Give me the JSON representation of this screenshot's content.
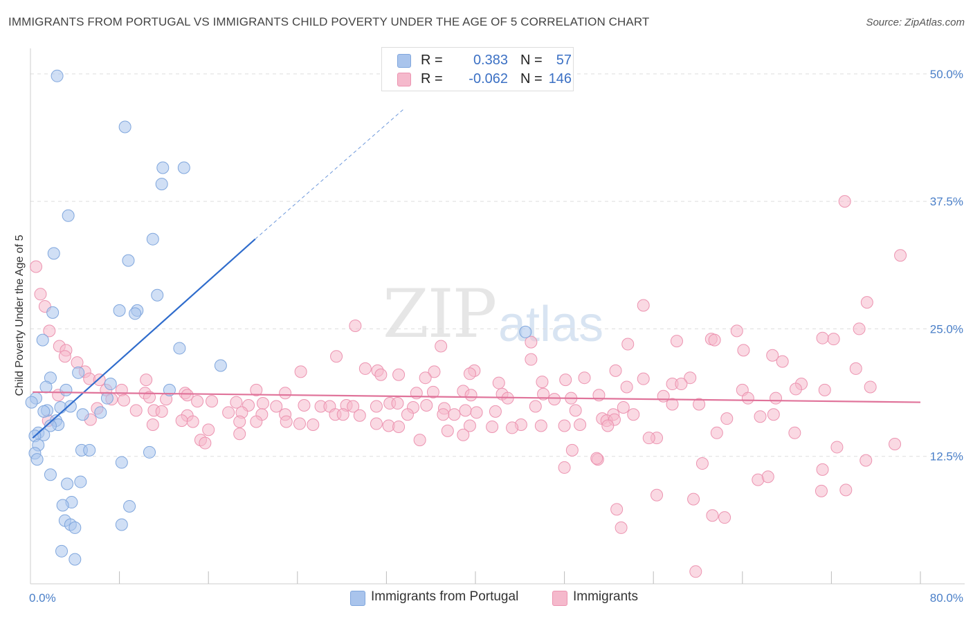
{
  "header": {
    "title": "IMMIGRANTS FROM PORTUGAL VS IMMIGRANTS CHILD POVERTY UNDER THE AGE OF 5 CORRELATION CHART",
    "source": "Source: ZipAtlas.com"
  },
  "watermark": {
    "zip": "ZIP",
    "atlas": "atlas"
  },
  "legend": {
    "rows": [
      {
        "r_label": "R =",
        "r_value": "0.383",
        "n_label": "N =",
        "n_value": "57",
        "color": "#a9c4ec",
        "border": "#7fa6dd"
      },
      {
        "r_label": "R =",
        "r_value": "-0.062",
        "n_label": "N =",
        "n_value": "146",
        "color": "#f5b9cc",
        "border": "#ec93b0"
      }
    ]
  },
  "bottom_legend": [
    {
      "label": "Immigrants from Portugal",
      "color": "#a9c4ec",
      "border": "#7fa6dd"
    },
    {
      "label": "Immigrants",
      "color": "#f5b9cc",
      "border": "#ec93b0"
    }
  ],
  "chart_data": {
    "type": "scatter",
    "title": "IMMIGRANTS FROM PORTUGAL VS IMMIGRANTS CHILD POVERTY UNDER THE AGE OF 5 CORRELATION CHART",
    "xlabel": "",
    "ylabel": "Child Poverty Under the Age of 5",
    "xlim": [
      0,
      80
    ],
    "ylim": [
      0,
      52.5
    ],
    "x_tick_labels": [
      "0.0%",
      "80.0%"
    ],
    "y_ticks": [
      12.5,
      25.0,
      37.5,
      50.0
    ],
    "y_tick_labels": [
      "12.5%",
      "25.0%",
      "37.5%",
      "50.0%"
    ],
    "grid": "horizontal dashed",
    "series": [
      {
        "name": "Immigrants from Portugal",
        "color": "#7fa6dd",
        "fill": "#a9c4ec",
        "trend": {
          "x0": 0.2,
          "y0": 14.3,
          "x1": 20.2,
          "y1": 33.8,
          "dash_to_x": 33.5,
          "dash_to_y": 46.5,
          "color": "#2f6ccc"
        },
        "points": [
          [
            2.4,
            49.8
          ],
          [
            8.5,
            44.8
          ],
          [
            11.9,
            40.8
          ],
          [
            13.8,
            40.8
          ],
          [
            11.8,
            39.2
          ],
          [
            3.4,
            36.1
          ],
          [
            11.0,
            33.8
          ],
          [
            2.1,
            32.4
          ],
          [
            8.8,
            31.7
          ],
          [
            11.4,
            28.3
          ],
          [
            8.0,
            26.8
          ],
          [
            9.6,
            26.8
          ],
          [
            9.4,
            26.5
          ],
          [
            2.0,
            26.6
          ],
          [
            44.5,
            24.7
          ],
          [
            1.1,
            23.9
          ],
          [
            13.4,
            23.1
          ],
          [
            17.1,
            21.4
          ],
          [
            1.8,
            20.2
          ],
          [
            4.3,
            20.7
          ],
          [
            7.2,
            19.6
          ],
          [
            1.4,
            19.3
          ],
          [
            12.5,
            19.0
          ],
          [
            3.2,
            19.0
          ],
          [
            0.5,
            18.2
          ],
          [
            0.1,
            17.8
          ],
          [
            6.9,
            18.2
          ],
          [
            3.6,
            17.4
          ],
          [
            1.5,
            17.0
          ],
          [
            2.7,
            17.3
          ],
          [
            1.2,
            16.9
          ],
          [
            6.3,
            16.8
          ],
          [
            4.7,
            16.6
          ],
          [
            2.3,
            16.0
          ],
          [
            2.5,
            15.6
          ],
          [
            1.8,
            15.5
          ],
          [
            0.7,
            14.8
          ],
          [
            1.2,
            14.6
          ],
          [
            0.4,
            14.5
          ],
          [
            0.7,
            13.6
          ],
          [
            0.4,
            12.8
          ],
          [
            0.6,
            12.2
          ],
          [
            4.6,
            13.1
          ],
          [
            5.3,
            13.1
          ],
          [
            10.7,
            12.9
          ],
          [
            8.2,
            11.9
          ],
          [
            1.8,
            10.7
          ],
          [
            4.5,
            10.0
          ],
          [
            3.3,
            9.8
          ],
          [
            3.7,
            8.0
          ],
          [
            2.9,
            7.7
          ],
          [
            8.9,
            7.6
          ],
          [
            3.1,
            6.2
          ],
          [
            3.6,
            5.8
          ],
          [
            4.0,
            5.5
          ],
          [
            8.2,
            5.8
          ],
          [
            2.8,
            3.2
          ],
          [
            4.0,
            2.4
          ]
        ]
      },
      {
        "name": "Immigrants",
        "color": "#ec93b0",
        "fill": "#f5b9cc",
        "trend": {
          "x0": 0.2,
          "y0": 18.8,
          "x1": 80.0,
          "y1": 17.8,
          "color": "#e0739a"
        },
        "points": [
          [
            73.2,
            37.5
          ],
          [
            78.2,
            32.2
          ],
          [
            0.5,
            31.1
          ],
          [
            0.9,
            28.4
          ],
          [
            1.3,
            27.2
          ],
          [
            55.1,
            27.3
          ],
          [
            75.2,
            27.6
          ],
          [
            1.7,
            24.8
          ],
          [
            29.2,
            25.3
          ],
          [
            53.7,
            23.5
          ],
          [
            72.2,
            24.0
          ],
          [
            74.5,
            25.0
          ],
          [
            58.1,
            23.8
          ],
          [
            61.2,
            24.0
          ],
          [
            61.5,
            23.9
          ],
          [
            63.5,
            24.8
          ],
          [
            71.2,
            24.1
          ],
          [
            2.6,
            23.3
          ],
          [
            3.2,
            22.9
          ],
          [
            36.9,
            23.3
          ],
          [
            45.0,
            23.7
          ],
          [
            64.1,
            22.9
          ],
          [
            66.7,
            22.4
          ],
          [
            27.5,
            22.3
          ],
          [
            45.0,
            22.0
          ],
          [
            3.1,
            22.3
          ],
          [
            4.2,
            21.7
          ],
          [
            4.9,
            20.8
          ],
          [
            24.3,
            20.8
          ],
          [
            30.1,
            21.1
          ],
          [
            31.2,
            20.9
          ],
          [
            31.5,
            20.5
          ],
          [
            33.1,
            20.5
          ],
          [
            36.3,
            20.8
          ],
          [
            39.9,
            20.9
          ],
          [
            52.6,
            20.9
          ],
          [
            49.8,
            20.2
          ],
          [
            67.6,
            21.8
          ],
          [
            74.2,
            21.1
          ],
          [
            5.3,
            20.1
          ],
          [
            6.2,
            20.0
          ],
          [
            10.4,
            20.0
          ],
          [
            35.5,
            20.2
          ],
          [
            39.5,
            20.6
          ],
          [
            42.1,
            19.7
          ],
          [
            46.0,
            19.8
          ],
          [
            48.1,
            20.0
          ],
          [
            55.1,
            20.1
          ],
          [
            57.7,
            19.6
          ],
          [
            59.3,
            20.2
          ],
          [
            58.5,
            19.6
          ],
          [
            69.3,
            19.6
          ],
          [
            75.5,
            19.3
          ],
          [
            6.8,
            19.0
          ],
          [
            8.2,
            19.0
          ],
          [
            10.3,
            18.7
          ],
          [
            13.9,
            18.7
          ],
          [
            14.1,
            18.5
          ],
          [
            20.3,
            19.0
          ],
          [
            22.9,
            18.7
          ],
          [
            34.7,
            18.7
          ],
          [
            36.2,
            18.8
          ],
          [
            38.9,
            18.9
          ],
          [
            39.6,
            18.5
          ],
          [
            42.4,
            18.6
          ],
          [
            42.9,
            18.2
          ],
          [
            46.1,
            18.6
          ],
          [
            47.1,
            18.1
          ],
          [
            48.6,
            18.2
          ],
          [
            51.1,
            18.5
          ],
          [
            53.6,
            19.3
          ],
          [
            56.9,
            18.4
          ],
          [
            64.0,
            19.0
          ],
          [
            64.5,
            18.2
          ],
          [
            67.0,
            18.2
          ],
          [
            68.8,
            19.1
          ],
          [
            71.4,
            19.0
          ],
          [
            2.5,
            18.5
          ],
          [
            7.3,
            18.1
          ],
          [
            8.4,
            18.0
          ],
          [
            10.7,
            18.3
          ],
          [
            12.2,
            18.1
          ],
          [
            15.0,
            17.9
          ],
          [
            16.3,
            17.9
          ],
          [
            18.5,
            17.8
          ],
          [
            19.6,
            17.5
          ],
          [
            20.9,
            17.7
          ],
          [
            22.1,
            17.4
          ],
          [
            24.6,
            17.5
          ],
          [
            26.1,
            17.4
          ],
          [
            26.9,
            17.4
          ],
          [
            28.4,
            17.5
          ],
          [
            29.0,
            17.4
          ],
          [
            31.1,
            17.4
          ],
          [
            32.3,
            17.7
          ],
          [
            33.0,
            17.7
          ],
          [
            34.4,
            17.3
          ],
          [
            35.6,
            17.5
          ],
          [
            37.2,
            17.2
          ],
          [
            39.1,
            17.0
          ],
          [
            40.1,
            16.8
          ],
          [
            41.8,
            16.9
          ],
          [
            45.4,
            17.4
          ],
          [
            49.0,
            17.0
          ],
          [
            53.3,
            17.3
          ],
          [
            57.7,
            17.6
          ],
          [
            60.1,
            17.6
          ],
          [
            6.0,
            17.2
          ],
          [
            9.5,
            17.0
          ],
          [
            11.1,
            17.0
          ],
          [
            11.8,
            16.9
          ],
          [
            14.1,
            16.5
          ],
          [
            17.8,
            16.8
          ],
          [
            19.0,
            16.8
          ],
          [
            20.8,
            16.6
          ],
          [
            22.9,
            16.6
          ],
          [
            27.4,
            16.6
          ],
          [
            28.1,
            16.6
          ],
          [
            29.6,
            16.5
          ],
          [
            33.9,
            16.6
          ],
          [
            37.1,
            16.6
          ],
          [
            38.1,
            16.6
          ],
          [
            52.4,
            16.6
          ],
          [
            54.2,
            16.6
          ],
          [
            66.8,
            16.6
          ],
          [
            13.6,
            16.0
          ],
          [
            14.6,
            15.9
          ],
          [
            18.8,
            15.9
          ],
          [
            20.3,
            15.9
          ],
          [
            23.0,
            15.9
          ],
          [
            24.2,
            15.7
          ],
          [
            25.4,
            15.6
          ],
          [
            31.1,
            15.7
          ],
          [
            32.2,
            15.5
          ],
          [
            33.1,
            15.4
          ],
          [
            39.5,
            15.5
          ],
          [
            44.1,
            15.6
          ],
          [
            45.9,
            15.5
          ],
          [
            48.0,
            15.5
          ],
          [
            49.4,
            15.6
          ],
          [
            51.4,
            16.2
          ],
          [
            51.8,
            16.0
          ],
          [
            52.5,
            16.1
          ],
          [
            62.6,
            16.2
          ],
          [
            65.6,
            16.4
          ],
          [
            1.6,
            16.0
          ],
          [
            5.4,
            16.1
          ],
          [
            11.0,
            15.6
          ],
          [
            16.0,
            15.1
          ],
          [
            18.8,
            14.7
          ],
          [
            15.3,
            14.1
          ],
          [
            35.0,
            14.1
          ],
          [
            37.5,
            15.0
          ],
          [
            38.9,
            14.6
          ],
          [
            41.5,
            15.4
          ],
          [
            43.3,
            15.3
          ],
          [
            51.9,
            15.5
          ],
          [
            56.3,
            14.3
          ],
          [
            61.7,
            14.8
          ],
          [
            68.7,
            14.8
          ],
          [
            77.7,
            13.7
          ],
          [
            72.5,
            13.4
          ],
          [
            48.7,
            13.1
          ],
          [
            55.6,
            14.3
          ],
          [
            15.7,
            13.8
          ],
          [
            51.0,
            12.2
          ],
          [
            60.4,
            11.8
          ],
          [
            50.9,
            12.3
          ],
          [
            71.2,
            11.2
          ],
          [
            75.1,
            12.1
          ],
          [
            48.0,
            11.4
          ],
          [
            65.4,
            10.2
          ],
          [
            66.3,
            10.5
          ],
          [
            73.3,
            9.2
          ],
          [
            56.3,
            8.7
          ],
          [
            59.6,
            8.3
          ],
          [
            61.3,
            6.7
          ],
          [
            62.4,
            6.5
          ],
          [
            52.7,
            7.3
          ],
          [
            53.1,
            5.5
          ],
          [
            59.8,
            1.2
          ],
          [
            71.1,
            9.1
          ]
        ]
      }
    ]
  }
}
